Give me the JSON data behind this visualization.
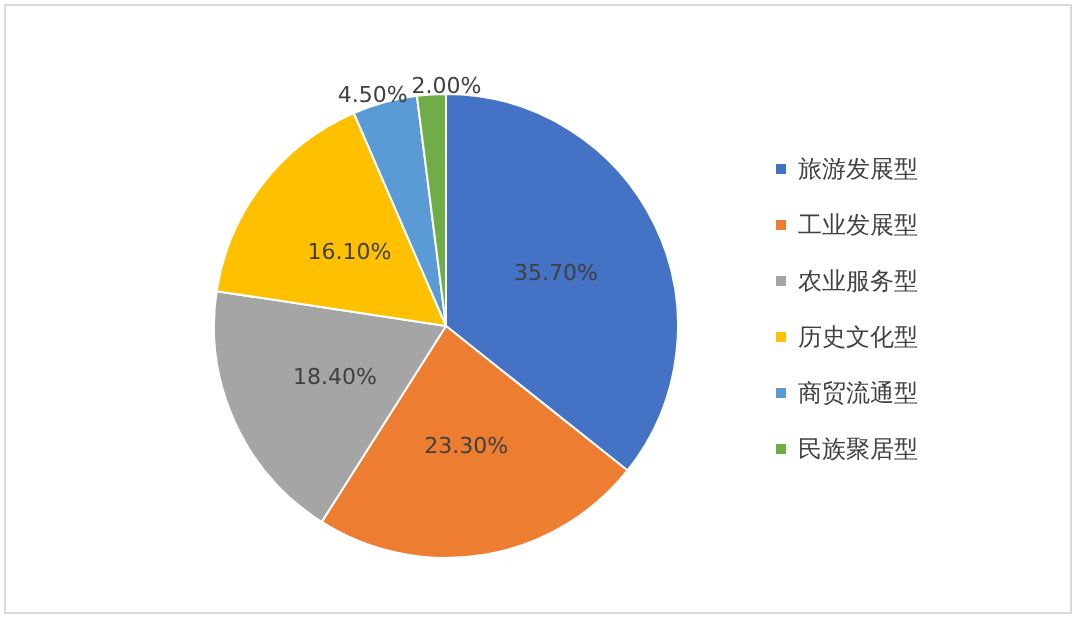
{
  "chart_data": {
    "type": "pie",
    "categories": [
      "旅游发展型",
      "工业发展型",
      "农业服务型",
      "历史文化型",
      "商贸流通型",
      "民族聚居型"
    ],
    "values": [
      35.7,
      23.3,
      18.4,
      16.1,
      4.5,
      2.0
    ],
    "value_labels": [
      "35.70%",
      "23.30%",
      "18.40%",
      "16.10%",
      "4.50%",
      "2.00%"
    ],
    "colors": [
      "#4472c4",
      "#ed7d31",
      "#a5a5a5",
      "#ffc000",
      "#5b9bd5",
      "#70ad47"
    ],
    "legend": "right"
  }
}
